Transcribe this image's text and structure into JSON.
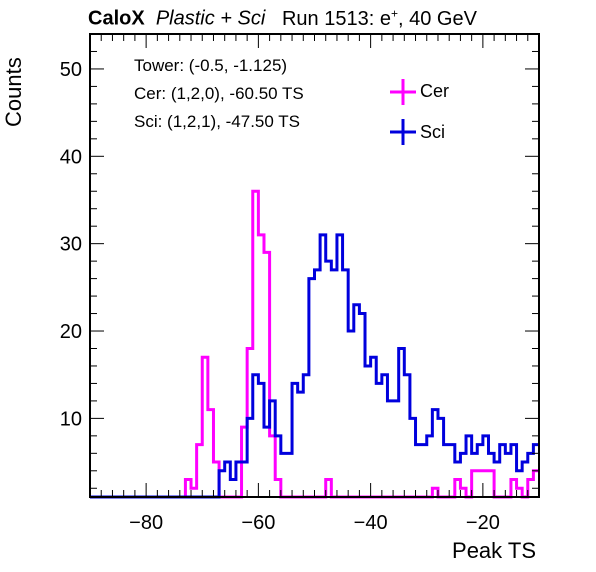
{
  "header": {
    "experiment": "CaloX",
    "subtitle": "Plastic + Sci",
    "run_prefix": "Run 1513: e",
    "run_sup": "+",
    "run_suffix": ", 40 GeV"
  },
  "info": {
    "tower": "Tower: (-0.5, -1.125)",
    "cer": "Cer: (1,2,0), -60.50 TS",
    "sci": "Sci: (1,2,1), -47.50 TS"
  },
  "colors": {
    "cer": "#ff00ff",
    "sci": "#0000dd",
    "axis": "#000000"
  },
  "chart_data": {
    "type": "histogram",
    "xlabel": "Peak TS",
    "ylabel": "Counts",
    "xlim": [
      -90,
      -10
    ],
    "ylim": [
      1,
      54
    ],
    "xticks": [
      -80,
      -60,
      -40,
      -20
    ],
    "yticks": [
      10,
      20,
      30,
      40,
      50
    ],
    "series": [
      {
        "name": "Cer",
        "bins": [
          [
            -84,
            1
          ],
          [
            -78,
            1
          ],
          [
            -75,
            1
          ],
          [
            -73,
            3
          ],
          [
            -72,
            2
          ],
          [
            -71,
            7
          ],
          [
            -70,
            17
          ],
          [
            -69,
            11
          ],
          [
            -68,
            5
          ],
          [
            -64,
            1
          ],
          [
            -63,
            9
          ],
          [
            -62,
            18
          ],
          [
            -61,
            36
          ],
          [
            -60,
            31
          ],
          [
            -59,
            29
          ],
          [
            -58,
            8
          ],
          [
            -57,
            3
          ],
          [
            -56,
            1
          ],
          [
            -55,
            1
          ],
          [
            -52,
            1
          ],
          [
            -48,
            3
          ],
          [
            -37,
            1
          ],
          [
            -36,
            1
          ],
          [
            -35,
            1
          ],
          [
            -34,
            1
          ],
          [
            -32,
            1
          ],
          [
            -29,
            2
          ],
          [
            -27,
            1
          ],
          [
            -25,
            3
          ],
          [
            -24,
            2
          ],
          [
            -22,
            4
          ],
          [
            -21,
            4
          ],
          [
            -20,
            4
          ],
          [
            -19,
            4
          ],
          [
            -15,
            3
          ],
          [
            -14,
            2
          ],
          [
            -12,
            3
          ],
          [
            -11,
            4
          ],
          [
            -10,
            4
          ]
        ]
      },
      {
        "name": "Sci",
        "bins": [
          [
            -84,
            1
          ],
          [
            -83,
            1
          ],
          [
            -74,
            1
          ],
          [
            -69,
            1
          ],
          [
            -68,
            1
          ],
          [
            -67,
            4
          ],
          [
            -66,
            5
          ],
          [
            -65,
            3
          ],
          [
            -64,
            5
          ],
          [
            -63,
            5
          ],
          [
            -62,
            10
          ],
          [
            -61,
            15
          ],
          [
            -60,
            14
          ],
          [
            -59,
            9
          ],
          [
            -58,
            12
          ],
          [
            -57,
            8
          ],
          [
            -56,
            6
          ],
          [
            -55,
            6
          ],
          [
            -54,
            14
          ],
          [
            -53,
            13
          ],
          [
            -52,
            15
          ],
          [
            -51,
            26
          ],
          [
            -50,
            27
          ],
          [
            -49,
            31
          ],
          [
            -48,
            28
          ],
          [
            -47,
            27
          ],
          [
            -46,
            31
          ],
          [
            -45,
            27
          ],
          [
            -44,
            20
          ],
          [
            -43,
            23
          ],
          [
            -42,
            22
          ],
          [
            -41,
            16
          ],
          [
            -40,
            17
          ],
          [
            -39,
            14
          ],
          [
            -38,
            15
          ],
          [
            -37,
            12
          ],
          [
            -36,
            12
          ],
          [
            -35,
            18
          ],
          [
            -34,
            15
          ],
          [
            -33,
            10
          ],
          [
            -32,
            7
          ],
          [
            -31,
            7
          ],
          [
            -30,
            8
          ],
          [
            -29,
            11
          ],
          [
            -28,
            10
          ],
          [
            -27,
            7
          ],
          [
            -26,
            7
          ],
          [
            -25,
            5
          ],
          [
            -24,
            6
          ],
          [
            -23,
            8
          ],
          [
            -22,
            6
          ],
          [
            -21,
            7
          ],
          [
            -20,
            8
          ],
          [
            -19,
            6
          ],
          [
            -18,
            5
          ],
          [
            -17,
            7
          ],
          [
            -16,
            6
          ],
          [
            -15,
            7
          ],
          [
            -14,
            4
          ],
          [
            -13,
            5
          ],
          [
            -12,
            6
          ],
          [
            -11,
            7
          ],
          [
            -10,
            7
          ]
        ]
      }
    ]
  }
}
